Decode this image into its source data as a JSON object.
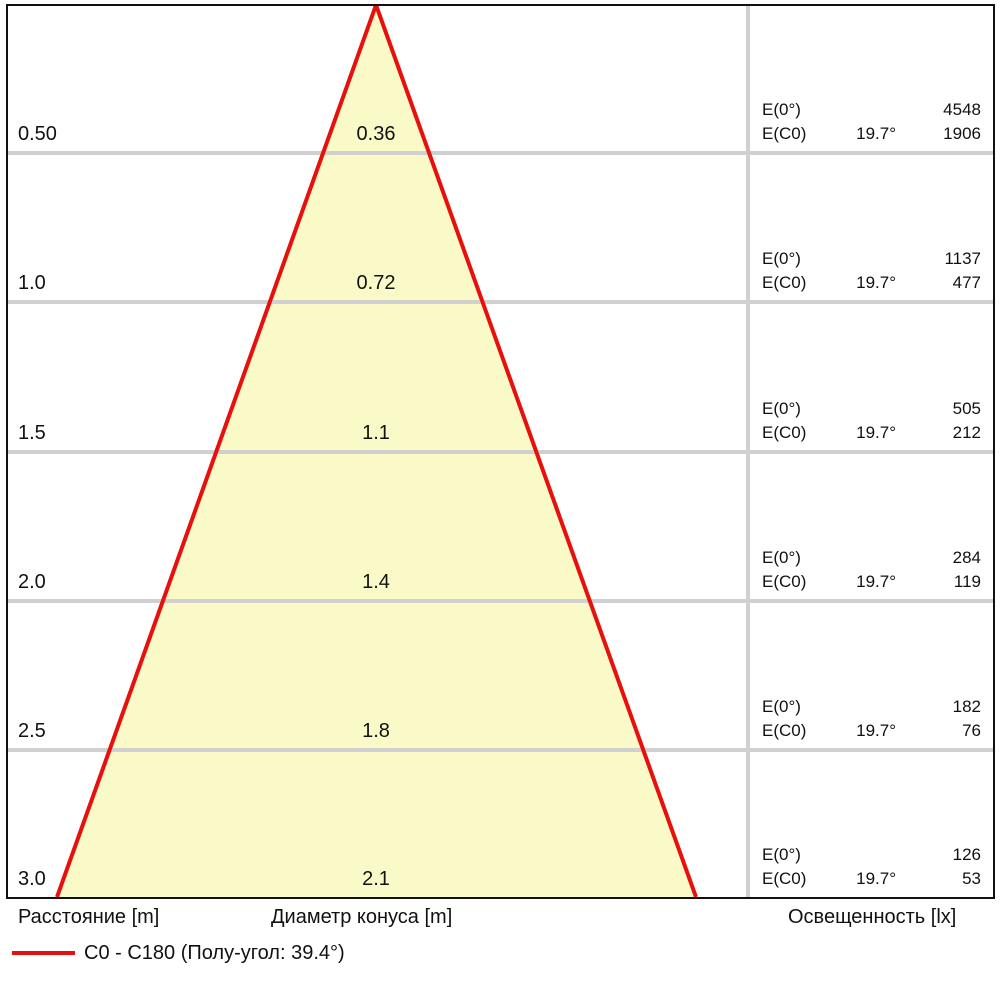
{
  "colors": {
    "cone_fill": "#fafac8",
    "cone_line": "#e8100c",
    "grid": "#d0d0d0",
    "frame": "#111111"
  },
  "rows": [
    {
      "distance": "0.50",
      "diameter": "0.36",
      "e0_label": "E(0°)",
      "e0_value": "4548",
      "ec0_label": "E(C0)",
      "ec0_angle": "19.7°",
      "ec0_value": "1906"
    },
    {
      "distance": "1.0",
      "diameter": "0.72",
      "e0_label": "E(0°)",
      "e0_value": "1137",
      "ec0_label": "E(C0)",
      "ec0_angle": "19.7°",
      "ec0_value": "477"
    },
    {
      "distance": "1.5",
      "diameter": "1.1",
      "e0_label": "E(0°)",
      "e0_value": "505",
      "ec0_label": "E(C0)",
      "ec0_angle": "19.7°",
      "ec0_value": "212"
    },
    {
      "distance": "2.0",
      "diameter": "1.4",
      "e0_label": "E(0°)",
      "e0_value": "284",
      "ec0_label": "E(C0)",
      "ec0_angle": "19.7°",
      "ec0_value": "119"
    },
    {
      "distance": "2.5",
      "diameter": "1.8",
      "e0_label": "E(0°)",
      "e0_value": "182",
      "ec0_label": "E(C0)",
      "ec0_angle": "19.7°",
      "ec0_value": "76"
    },
    {
      "distance": "3.0",
      "diameter": "2.1",
      "e0_label": "E(0°)",
      "e0_value": "126",
      "ec0_label": "E(C0)",
      "ec0_angle": "19.7°",
      "ec0_value": "53"
    }
  ],
  "labels": {
    "distance": "Расстояние [m]",
    "diameter": "Диаметр конуса [m]",
    "illuminance": "Освещенность [lx]"
  },
  "legend": {
    "label": "C0 - C180 (Полу-угол: 39.4°)"
  }
}
